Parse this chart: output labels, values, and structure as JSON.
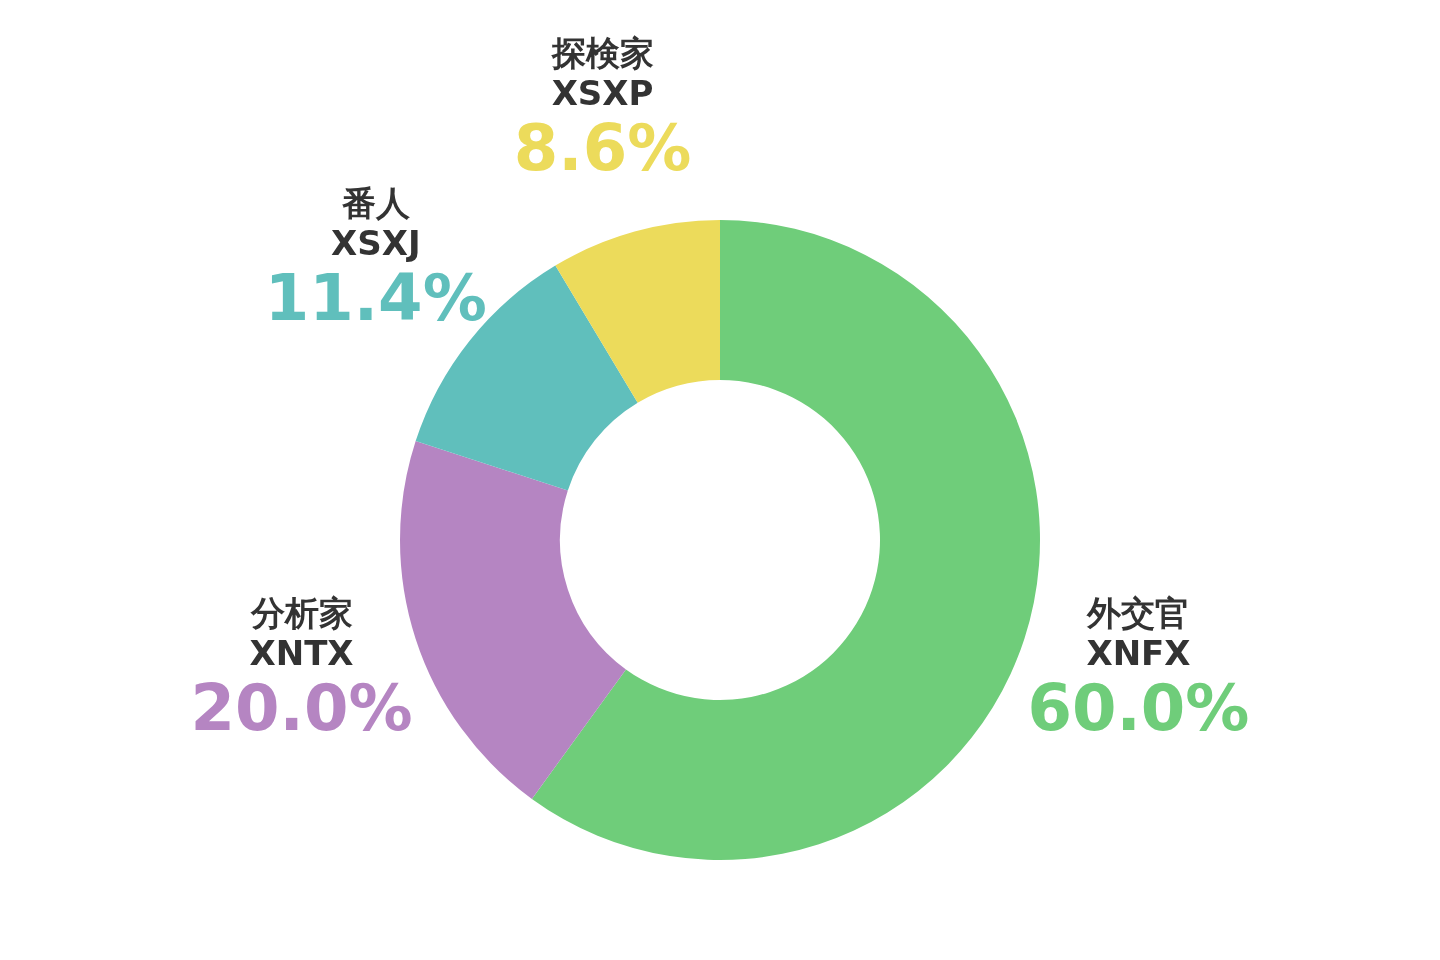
{
  "chart_data": {
    "type": "donut",
    "categories": [
      "外交官\nXNFX",
      "分析家\nXNTX",
      "番人\nXSXJ",
      "探検家\nXSXP"
    ],
    "values": [
      60.0,
      20.0,
      11.4,
      8.6
    ],
    "colors": [
      "#6fcd7a",
      "#b585c2",
      "#60bfbc",
      "#ecdb5b"
    ],
    "value_labels": [
      "60.0%",
      "20.0%",
      "11.4%",
      "8.6%"
    ],
    "legend": false
  }
}
